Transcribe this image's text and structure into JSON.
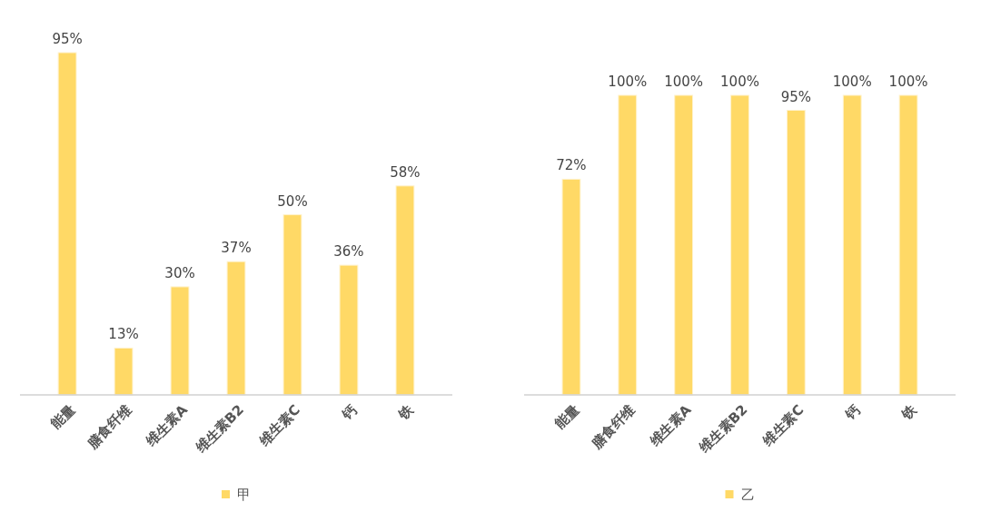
{
  "chart_data": [
    {
      "type": "bar",
      "categories": [
        "能量",
        "膳食纤维",
        "维生素A",
        "维生素B2",
        "维生素C",
        "钙",
        "铁"
      ],
      "series": [
        {
          "name": "甲",
          "color": "#ffd966",
          "values": [
            95,
            13,
            30,
            37,
            50,
            36,
            58
          ],
          "value_labels": [
            "95%",
            "13%",
            "30%",
            "37%",
            "50%",
            "36%",
            "58%"
          ]
        }
      ],
      "legend": "bottom",
      "grid": false
    },
    {
      "type": "bar",
      "categories": [
        "能量",
        "膳食纤维",
        "维生素A",
        "维生素B2",
        "维生素C",
        "钙",
        "铁"
      ],
      "series": [
        {
          "name": "乙",
          "color": "#ffd966",
          "values": [
            72,
            100,
            100,
            100,
            95,
            100,
            100
          ],
          "value_labels": [
            "72%",
            "100%",
            "100%",
            "100%",
            "95%",
            "100%",
            "100%"
          ]
        }
      ],
      "legend": "bottom",
      "grid": false
    }
  ]
}
